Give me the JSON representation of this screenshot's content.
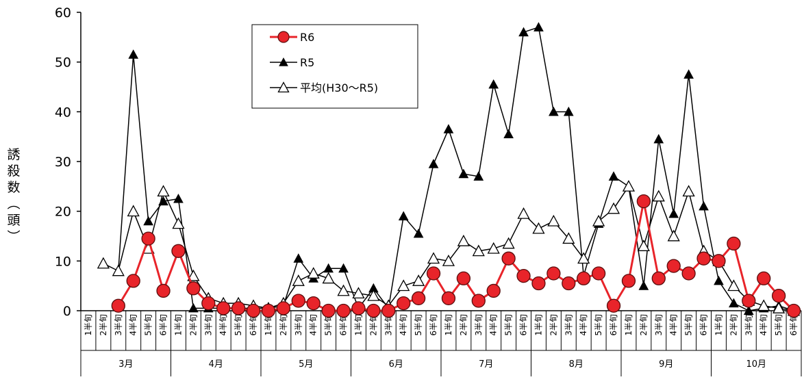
{
  "chart_data": {
    "type": "line",
    "ylabel": "誘殺数（頭）",
    "ylim": [
      0,
      60
    ],
    "yticks": [
      0,
      10,
      20,
      30,
      40,
      50,
      60
    ],
    "months": [
      "3月",
      "4月",
      "5月",
      "6月",
      "7月",
      "8月",
      "9月",
      "10月"
    ],
    "half_labels": [
      "1半旬",
      "2半旬",
      "3半旬",
      "4半旬",
      "5半旬",
      "6半旬"
    ],
    "categories": [
      "3月1半旬",
      "3月2半旬",
      "3月3半旬",
      "3月4半旬",
      "3月5半旬",
      "3月6半旬",
      "4月1半旬",
      "4月2半旬",
      "4月3半旬",
      "4月4半旬",
      "4月5半旬",
      "4月6半旬",
      "5月1半旬",
      "5月2半旬",
      "5月3半旬",
      "5月4半旬",
      "5月5半旬",
      "5月6半旬",
      "6月1半旬",
      "6月2半旬",
      "6月3半旬",
      "6月4半旬",
      "6月5半旬",
      "6月6半旬",
      "7月1半旬",
      "7月2半旬",
      "7月3半旬",
      "7月4半旬",
      "7月5半旬",
      "7月6半旬",
      "8月1半旬",
      "8月2半旬",
      "8月3半旬",
      "8月4半旬",
      "8月5半旬",
      "8月6半旬",
      "9月1半旬",
      "9月2半旬",
      "9月3半旬",
      "9月4半旬",
      "9月5半旬",
      "9月6半旬",
      "10月1半旬",
      "10月2半旬",
      "10月3半旬",
      "10月4半旬",
      "10月5半旬",
      "10月6半旬"
    ],
    "legend_position": "top-center",
    "grid": false,
    "series": [
      {
        "name": "R6",
        "color": "#e8242a",
        "marker": "circle",
        "values": [
          null,
          null,
          1,
          6,
          14.5,
          4,
          12,
          4.5,
          1.5,
          0.5,
          0.5,
          0,
          0,
          0.5,
          2,
          1.5,
          0,
          0,
          0.5,
          0,
          0,
          1.5,
          2.5,
          7.5,
          2.5,
          6.5,
          2,
          4,
          10.5,
          7,
          5.5,
          7.5,
          5.5,
          6.5,
          7.5,
          1,
          6,
          22,
          6.5,
          9,
          7.5,
          10.5,
          10,
          13.5,
          2,
          6.5,
          3,
          0
        ]
      },
      {
        "name": "R5",
        "color": "#000000",
        "marker": "triangle-filled",
        "values": [
          null,
          null,
          8,
          51.5,
          18,
          22,
          22.5,
          0.5,
          0.5,
          0.5,
          0.5,
          0.5,
          0.5,
          1,
          10.5,
          6.5,
          8.5,
          8.5,
          0.5,
          4.5,
          0.5,
          19,
          15.5,
          29.5,
          36.5,
          27.5,
          27,
          45.5,
          35.5,
          56,
          57,
          40,
          40,
          7,
          17.5,
          27,
          25,
          5,
          34.5,
          19.5,
          47.5,
          21,
          6,
          1.5,
          0,
          0.5,
          1,
          0
        ]
      },
      {
        "name": "平均(H30～R5)",
        "color": "#000000",
        "marker": "triangle-open",
        "values": [
          null,
          9.5,
          8,
          20,
          12.5,
          24,
          17.5,
          7,
          2.5,
          1.5,
          1.5,
          1,
          0.5,
          1.5,
          6,
          7.5,
          6.5,
          4,
          3.5,
          3,
          1,
          5,
          6,
          10.5,
          10,
          14,
          12,
          12.5,
          13.5,
          19.5,
          16.5,
          18,
          14.5,
          10.5,
          18,
          20.5,
          25,
          13,
          23,
          15,
          24,
          12,
          10,
          5,
          2,
          1,
          0.5,
          0
        ]
      }
    ]
  }
}
